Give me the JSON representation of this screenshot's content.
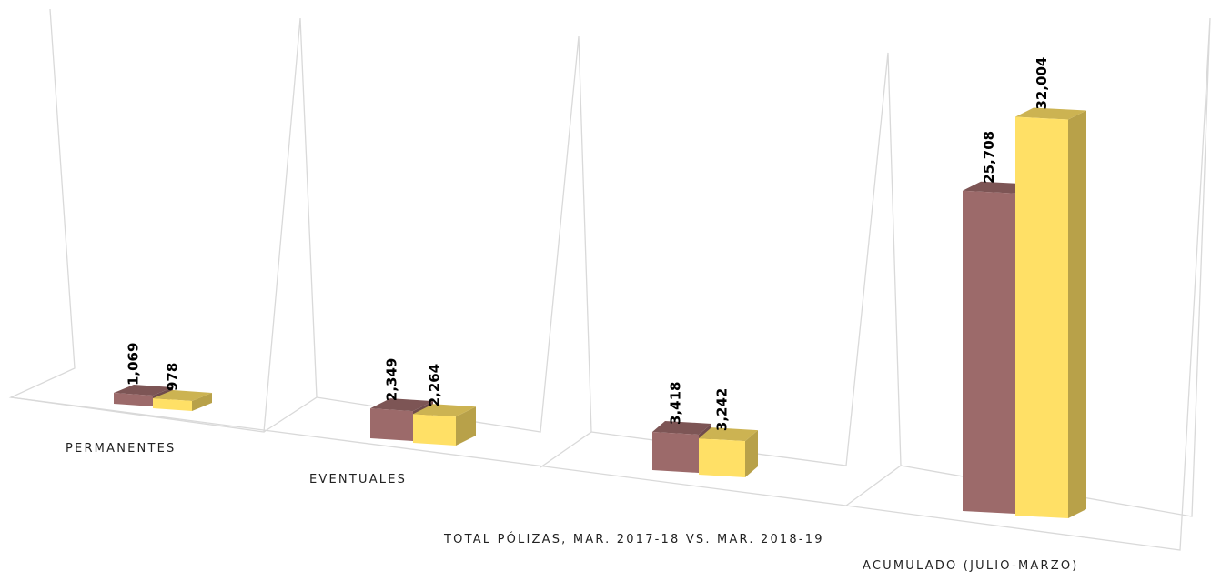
{
  "chart_data": {
    "type": "bar3d",
    "categories": [
      "PERMANENTES",
      "EVENTUALES",
      "TOTAL PÓLIZAS, MAR. 2017-18  VS. MAR. 2018-19",
      "ACUMULADO (JULIO-MARZO)"
    ],
    "series": [
      {
        "color": "#9c6a6a",
        "values": [
          1069,
          2349,
          3418,
          25708
        ],
        "value_labels": [
          "1,069",
          "2,349",
          "3,418",
          "25,708"
        ]
      },
      {
        "color": "#ffe066",
        "values": [
          978,
          2264,
          3242,
          32004
        ],
        "value_labels": [
          "978",
          "2,264",
          "3,242",
          "32,004"
        ]
      }
    ]
  }
}
